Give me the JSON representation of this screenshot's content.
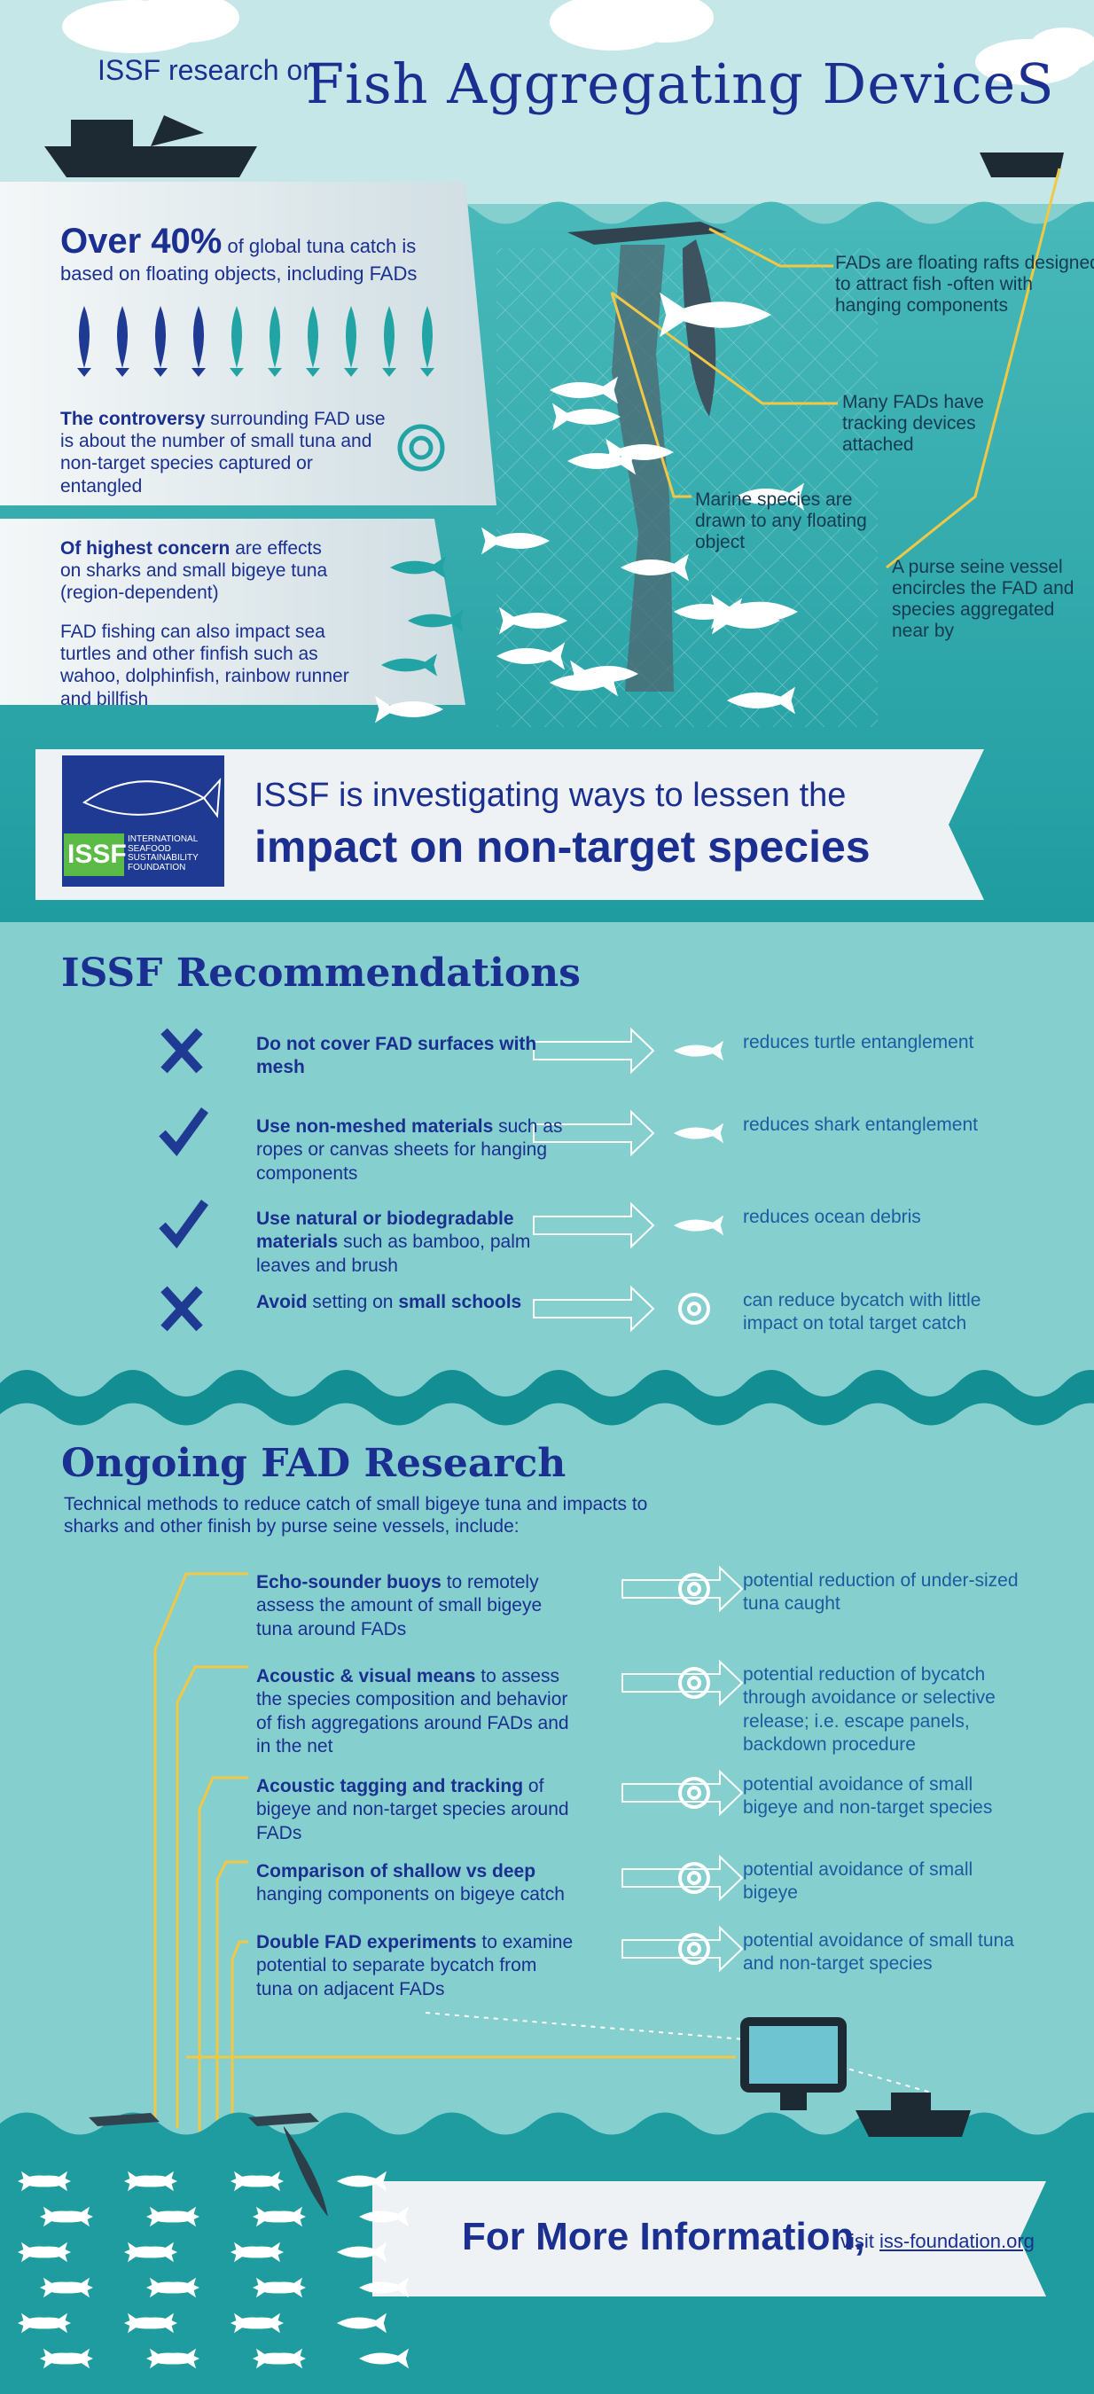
{
  "header": {
    "prefix": "ISSF research on",
    "title": "Fish Aggregating DeviceS"
  },
  "facts": {
    "catch_highlight": "Over 40%",
    "catch_text": "of global tuna catch is based on floating objects, including FADs",
    "controversy_bold": "The controversy",
    "controversy_text": "surrounding FAD use is about the number of small tuna and non-target species captured or entangled",
    "concern_bold": "Of highest concern",
    "concern_text": "are effects on sharks and small bigeye tuna (region-dependent)",
    "impact_text": "FAD fishing can also impact sea turtles and other finfish such as wahoo, dolphinfish, rainbow runner and billfish"
  },
  "callouts": [
    "FADs are floating rafts designed to attract fish -often with hanging components",
    "Many FADs have tracking devices attached",
    "Marine species are drawn to any floating object",
    "A purse seine vessel encircles the FAD and species aggregated near by"
  ],
  "banner": {
    "logo": "ISSF",
    "logo_sub": "INTERNATIONAL SEAFOOD SUSTAINABILITY FOUNDATION",
    "line1": "ISSF is investigating ways to lessen the",
    "line2": "impact on non-target species"
  },
  "recommendations": {
    "title": "ISSF Recommendations",
    "items": [
      {
        "segments": [
          {
            "text": "Do not cover FAD surfaces with mesh",
            "bold": true
          }
        ],
        "result": "reduces turtle entanglement"
      },
      {
        "segments": [
          {
            "text": "Use non-meshed materials",
            "bold": true
          },
          {
            "text": "such as ropes or canvas sheets for hanging components",
            "bold": false
          }
        ],
        "result": "reduces shark entanglement"
      },
      {
        "segments": [
          {
            "text": "Use natural or biodegradable materials",
            "bold": true
          },
          {
            "text": "such as bamboo, palm leaves and brush",
            "bold": false
          }
        ],
        "result": "reduces ocean debris"
      },
      {
        "segments": [
          {
            "text": "Avoid",
            "bold": true
          },
          {
            "text": "setting on",
            "bold": false
          },
          {
            "text": "small schools",
            "bold": true
          }
        ],
        "result": "can reduce bycatch with little impact on total target catch"
      }
    ]
  },
  "research": {
    "title": "Ongoing FAD Research",
    "intro": "Technical methods to reduce catch of small bigeye tuna and impacts to sharks and other finish by purse seine vessels, include:",
    "items": [
      {
        "segments": [
          {
            "text": "Echo-sounder buoys",
            "bold": true
          },
          {
            "text": "to remotely assess the amount of small bigeye tuna around FADs",
            "bold": false
          }
        ],
        "result": "potential reduction of under-sized tuna caught"
      },
      {
        "segments": [
          {
            "text": "Acoustic & visual means",
            "bold": true
          },
          {
            "text": "to assess the species composition and behavior of fish aggregations around FADs and in the net",
            "bold": false
          }
        ],
        "result": "potential reduction of bycatch through avoidance or selective release; i.e. escape panels, backdown procedure"
      },
      {
        "segments": [
          {
            "text": "Acoustic tagging and tracking",
            "bold": true
          },
          {
            "text": "of bigeye and non-target species around FADs",
            "bold": false
          }
        ],
        "result": "potential avoidance of small bigeye and non-target species"
      },
      {
        "segments": [
          {
            "text": "Comparison of shallow vs deep",
            "bold": true
          },
          {
            "text": "hanging components on bigeye catch",
            "bold": false
          }
        ],
        "result": "potential avoidance of small bigeye"
      },
      {
        "segments": [
          {
            "text": "Double FAD experiments",
            "bold": true
          },
          {
            "text": "to examine potential to separate bycatch from tuna on adjacent FADs",
            "bold": false
          }
        ],
        "result": "potential avoidance of small tuna and non-target species"
      }
    ]
  },
  "footer": {
    "title": "For More Information,",
    "visit": "visit",
    "link": "iss-foundation.org"
  }
}
